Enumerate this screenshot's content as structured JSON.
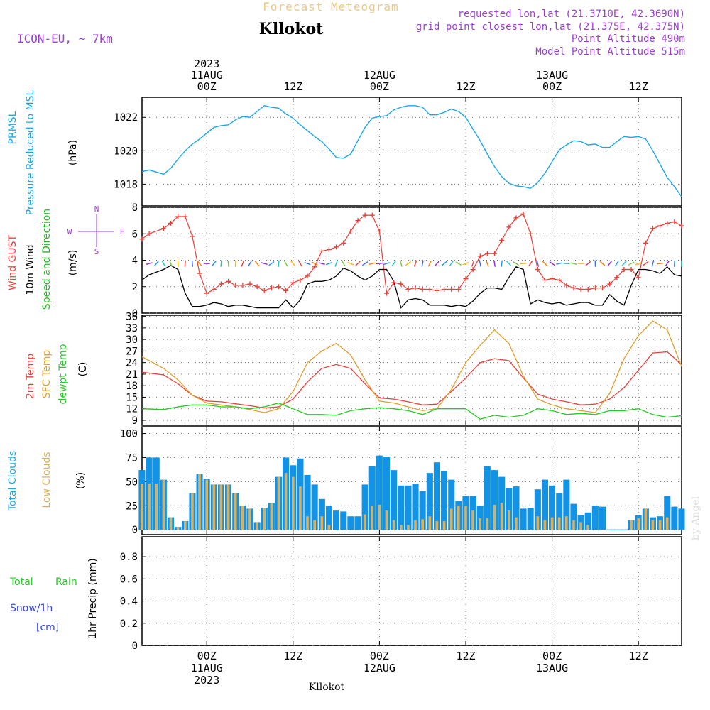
{
  "header": {
    "supertitle": "Forecast Meteogram",
    "title": "Kllokot",
    "model": "ICON-EU, ~ 7km",
    "requested": "requested lon,lat (21.3710E, 42.3690N)",
    "gridpoint": "grid point closest lon,lat (21.375E, 42.375N)",
    "point_altitude": "Point Altitude 490m",
    "model_altitude": "Model Point Altitude 515m",
    "footer_location": "Kllokot",
    "watermark": "by Angel"
  },
  "time_axis": {
    "tick_hours": [
      0,
      12,
      24,
      36,
      48,
      60
    ],
    "top_labels": [
      [
        "2023",
        "11AUG",
        "00Z"
      ],
      [
        "12Z"
      ],
      [
        "12AUG",
        "00Z"
      ],
      [
        "12Z"
      ],
      [
        "13AUG",
        "00Z"
      ],
      [
        "12Z"
      ]
    ],
    "bottom_labels": [
      [
        "00Z",
        "11AUG",
        "2023"
      ],
      [
        "12Z"
      ],
      [
        "00Z",
        "12AUG"
      ],
      [
        "12Z"
      ],
      [
        "00Z",
        "13AUG"
      ],
      [
        "12Z"
      ]
    ]
  },
  "panel_labels": {
    "pressure": [
      "PRMSL",
      "Pressure Reduced to MSL",
      "(hPa)"
    ],
    "wind": [
      "Wind GUST",
      "10m Wind",
      "Speed and Direction",
      "(m/s)"
    ],
    "compass": [
      "N",
      "S",
      "W",
      "E"
    ],
    "temp": [
      "2m Temp",
      "SFC Temp",
      "dewpt Temp",
      "(C)"
    ],
    "clouds": [
      "Total Clouds",
      "Low Clouds",
      "(%)"
    ],
    "precip": [
      "Total",
      "Rain",
      "Snow/1h",
      "[cm]",
      "1hr Precip (mm)"
    ]
  },
  "colors": {
    "pressure": "#1ea7e8",
    "gust": "#e8403a",
    "wind": "#000000",
    "dir_label": "#22bb22",
    "t2m": "#e8403a",
    "tsfc": "#e0a030",
    "dewpt": "#22cc22",
    "total_clouds": "#1393e6",
    "low_clouds": "#d9b060",
    "label_blue": "#1ea7e8",
    "label_purple": "#9b3fd6",
    "rain_green": "#22cc22",
    "snow_blue": "#3344ee"
  },
  "chart_data": [
    {
      "type": "line",
      "title": "PRMSL Pressure Reduced to MSL",
      "ylabel": "(hPa)",
      "ylim": [
        1016.7,
        1023.2
      ],
      "yticks": [
        1018,
        1020,
        1022
      ],
      "x": [
        -9,
        -8,
        -6,
        -5,
        -4,
        -3,
        -2,
        -1,
        0,
        1,
        2,
        3,
        4,
        5,
        6,
        7,
        8,
        9,
        10,
        11,
        12,
        13,
        14,
        15,
        16,
        17,
        18,
        19,
        20,
        21,
        22,
        23,
        24,
        25,
        26,
        27,
        28,
        29,
        30,
        31,
        32,
        33,
        34,
        35,
        36,
        37,
        38,
        39,
        40,
        41,
        42,
        43,
        44,
        45,
        46,
        47,
        48,
        49,
        50,
        51,
        52,
        53,
        54,
        55,
        56,
        57,
        58,
        59,
        60,
        61,
        62,
        63,
        64,
        65,
        66
      ],
      "series": [
        {
          "name": "PRMSL",
          "values": [
            1018.75,
            1018.85,
            1018.6,
            1018.95,
            1019.5,
            1020.0,
            1020.4,
            1020.7,
            1021.05,
            1021.4,
            1021.5,
            1021.55,
            1021.85,
            1022.05,
            1022.0,
            1022.35,
            1022.7,
            1022.6,
            1022.55,
            1022.2,
            1021.95,
            1021.55,
            1021.2,
            1020.85,
            1020.55,
            1020.1,
            1019.6,
            1019.55,
            1019.8,
            1020.6,
            1021.4,
            1021.95,
            1022.05,
            1022.1,
            1022.45,
            1022.6,
            1022.7,
            1022.7,
            1022.6,
            1022.15,
            1022.15,
            1022.3,
            1022.5,
            1022.35,
            1022.0,
            1021.3,
            1020.6,
            1019.8,
            1019.05,
            1018.45,
            1018.05,
            1017.9,
            1017.85,
            1017.75,
            1018.1,
            1018.65,
            1019.35,
            1020.05,
            1020.35,
            1020.6,
            1020.55,
            1020.35,
            1020.4,
            1020.2,
            1020.2,
            1020.55,
            1020.85,
            1020.8,
            1020.85,
            1020.7,
            1020.0,
            1019.2,
            1018.4,
            1017.85,
            1017.25
          ]
        }
      ]
    },
    {
      "type": "line",
      "title": "Wind GUST / 10m Wind Speed and Direction",
      "ylabel": "(m/s)",
      "ylim": [
        0,
        8
      ],
      "yticks": [
        0,
        2,
        4,
        6,
        8
      ],
      "x": [
        -9,
        -8,
        -6,
        -5,
        -4,
        -3,
        -2,
        -1,
        0,
        1,
        2,
        3,
        4,
        5,
        6,
        7,
        8,
        9,
        10,
        11,
        12,
        13,
        14,
        15,
        16,
        17,
        18,
        19,
        20,
        21,
        22,
        23,
        24,
        25,
        26,
        27,
        28,
        29,
        30,
        31,
        32,
        33,
        34,
        35,
        36,
        37,
        38,
        39,
        40,
        41,
        42,
        43,
        44,
        45,
        46,
        47,
        48,
        49,
        50,
        51,
        52,
        53,
        54,
        55,
        56,
        57,
        58,
        59,
        60,
        61,
        62,
        63,
        64,
        65,
        66
      ],
      "series": [
        {
          "name": "Wind GUST",
          "values": [
            5.6,
            6.0,
            6.4,
            6.8,
            7.3,
            7.3,
            5.8,
            3.0,
            1.5,
            1.8,
            2.2,
            2.4,
            2.1,
            2.1,
            2.2,
            2.0,
            1.7,
            1.9,
            2.0,
            1.7,
            2.3,
            2.5,
            2.8,
            3.5,
            4.7,
            4.8,
            5.0,
            5.3,
            6.2,
            7.0,
            7.4,
            7.4,
            6.2,
            1.5,
            2.3,
            2.2,
            1.8,
            1.9,
            1.8,
            1.8,
            1.7,
            1.8,
            1.8,
            1.8,
            2.6,
            3.3,
            4.3,
            4.5,
            4.5,
            5.5,
            6.5,
            7.2,
            7.5,
            6.0,
            3.3,
            2.5,
            2.6,
            2.5,
            2.1,
            1.9,
            1.8,
            1.8,
            1.9,
            1.9,
            2.2,
            2.7,
            3.3,
            3.3,
            2.7,
            5.3,
            6.4,
            6.6,
            6.8,
            6.9,
            6.6
          ]
        },
        {
          "name": "10m Wind",
          "values": [
            2.5,
            2.9,
            3.3,
            3.6,
            3.3,
            1.5,
            0.5,
            0.5,
            0.6,
            0.8,
            0.7,
            0.5,
            0.6,
            0.6,
            0.5,
            0.4,
            0.4,
            0.4,
            0.4,
            1.0,
            0.4,
            1.0,
            2.2,
            2.4,
            2.4,
            2.5,
            2.8,
            3.4,
            3.2,
            2.8,
            2.5,
            2.8,
            3.3,
            3.3,
            2.4,
            0.4,
            1.0,
            1.1,
            1.0,
            0.6,
            0.6,
            0.6,
            0.5,
            0.6,
            0.5,
            0.9,
            1.5,
            1.9,
            1.9,
            1.8,
            2.7,
            3.5,
            3.3,
            0.7,
            1.0,
            0.8,
            0.7,
            0.8,
            0.6,
            0.7,
            0.8,
            0.8,
            0.6,
            0.6,
            1.4,
            0.9,
            0.6,
            2.1,
            3.3,
            3.3,
            3.2,
            3.0,
            3.5,
            2.9,
            2.8
          ]
        }
      ]
    },
    {
      "type": "line",
      "title": "2m Temp / SFC Temp / dewpt Temp",
      "ylabel": "(C)",
      "ylim": [
        7.7,
        36.3
      ],
      "yticks": [
        9,
        12,
        15,
        18,
        21,
        24,
        27,
        30,
        33,
        36
      ],
      "x": [
        -9,
        -6,
        -4,
        -2,
        0,
        2,
        4,
        6,
        8,
        10,
        12,
        14,
        16,
        18,
        20,
        22,
        24,
        26,
        28,
        30,
        32,
        34,
        36,
        38,
        40,
        42,
        44,
        46,
        48,
        50,
        52,
        54,
        56,
        58,
        60,
        62,
        64,
        66
      ],
      "series": [
        {
          "name": "2m Temp",
          "values": [
            21.5,
            20.8,
            18.5,
            15.5,
            14.0,
            13.8,
            13.3,
            12.8,
            12.2,
            12.5,
            14.5,
            19.0,
            22.5,
            23.5,
            22.5,
            18.5,
            14.8,
            14.5,
            13.8,
            13.0,
            13.2,
            16.5,
            20.0,
            24.0,
            25.0,
            24.5,
            20.0,
            15.8,
            14.5,
            13.8,
            13.0,
            13.2,
            14.5,
            17.5,
            22.0,
            26.5,
            26.8,
            23.5
          ]
        },
        {
          "name": "SFC Temp",
          "values": [
            25.5,
            22.5,
            19.5,
            15.5,
            13.5,
            13.0,
            12.5,
            11.8,
            11.0,
            12.0,
            16.5,
            24.0,
            27.0,
            29.0,
            26.0,
            19.5,
            14.0,
            13.5,
            12.5,
            11.5,
            12.0,
            17.0,
            24.0,
            28.5,
            32.5,
            29.0,
            20.5,
            14.5,
            13.0,
            12.0,
            11.5,
            11.0,
            16.0,
            25.0,
            31.0,
            34.8,
            32.5,
            23.0
          ]
        },
        {
          "name": "dewpt Temp",
          "values": [
            12.0,
            11.8,
            12.5,
            13.0,
            13.0,
            12.5,
            12.5,
            12.0,
            12.5,
            13.5,
            12.0,
            10.5,
            10.5,
            10.3,
            11.5,
            12.0,
            12.3,
            12.0,
            11.5,
            10.5,
            12.0,
            12.0,
            12.0,
            9.3,
            10.3,
            9.8,
            10.3,
            12.0,
            11.5,
            10.5,
            10.8,
            10.5,
            11.5,
            11.5,
            12.0,
            10.5,
            9.8,
            10.2
          ]
        }
      ]
    },
    {
      "type": "bar",
      "title": "Total Clouds / Low Clouds",
      "ylabel": "(%)",
      "ylim": [
        -5,
        107
      ],
      "yticks": [
        0,
        25,
        50,
        75,
        100
      ],
      "x": [
        -9,
        -8,
        -7,
        -6,
        -5,
        -4,
        -3,
        -2,
        -1,
        0,
        1,
        2,
        3,
        4,
        5,
        6,
        7,
        8,
        9,
        10,
        11,
        12,
        13,
        14,
        15,
        16,
        17,
        18,
        19,
        20,
        21,
        22,
        23,
        24,
        25,
        26,
        27,
        28,
        29,
        30,
        31,
        32,
        33,
        34,
        35,
        36,
        37,
        38,
        39,
        40,
        41,
        42,
        43,
        44,
        45,
        46,
        47,
        48,
        49,
        50,
        51,
        52,
        53,
        54,
        55,
        56,
        57,
        58,
        59,
        60,
        61,
        62,
        63,
        64,
        65,
        66
      ],
      "series": [
        {
          "name": "Total Clouds",
          "values": [
            62,
            75,
            75,
            52,
            13,
            3,
            9,
            38,
            58,
            53,
            47,
            47,
            47,
            38,
            25,
            22,
            8,
            23,
            28,
            55,
            75,
            67,
            74,
            57,
            47,
            32,
            25,
            20,
            19,
            14,
            14,
            47,
            66,
            77,
            76,
            62,
            46,
            46,
            48,
            40,
            59,
            70,
            61,
            52,
            30,
            35,
            35,
            25,
            66,
            62,
            55,
            43,
            45,
            22,
            23,
            42,
            52,
            46,
            38,
            52,
            27,
            15,
            18,
            25,
            24,
            0,
            0,
            0,
            10,
            15,
            22,
            13,
            14,
            35,
            24,
            22
          ]
        },
        {
          "name": "Low Clouds",
          "values": [
            48,
            48,
            48,
            52,
            13,
            3,
            9,
            38,
            58,
            52,
            47,
            47,
            47,
            38,
            25,
            22,
            8,
            23,
            28,
            55,
            59,
            55,
            45,
            14,
            10,
            14,
            5,
            0,
            0,
            0,
            0,
            16,
            25,
            26,
            20,
            10,
            5,
            5,
            10,
            11,
            14,
            9,
            9,
            22,
            25,
            25,
            20,
            12,
            12,
            26,
            28,
            20,
            13,
            0,
            0,
            14,
            10,
            13,
            13,
            14,
            10,
            8,
            5,
            0,
            0,
            0,
            0,
            0,
            10,
            12,
            22,
            10,
            10,
            13,
            0,
            0
          ]
        }
      ]
    },
    {
      "type": "line",
      "title": "Total Rain Snow/1h",
      "ylabel": "1hr Precip (mm)",
      "ylim": [
        0,
        0.98
      ],
      "yticks": [
        0,
        0.2,
        0.4,
        0.6,
        0.8
      ],
      "x": [
        -9,
        66
      ],
      "series": [
        {
          "name": "Total Rain",
          "values": [
            0,
            0
          ]
        }
      ]
    }
  ]
}
